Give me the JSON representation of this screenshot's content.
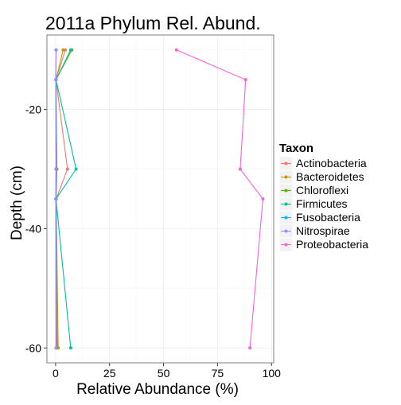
{
  "chart_data": {
    "type": "line",
    "title": "2011a Phylum Rel. Abund.",
    "xlabel": "Relative Abundance (%)",
    "ylabel": "Depth (cm)",
    "xlim": [
      -4,
      101
    ],
    "ylim": [
      -62.5,
      -7.5
    ],
    "x_ticks": [
      0,
      25,
      50,
      75,
      100
    ],
    "y_ticks": [
      -20,
      -40,
      -60
    ],
    "grid": true,
    "legend_title": "Taxon",
    "legend_position": "right",
    "depths": [
      -10,
      -15,
      -30,
      -35,
      -60
    ],
    "series": [
      {
        "name": "Actinobacteria",
        "color": "#F8766D",
        "values": [
          4.5,
          0.2,
          5.5,
          0.3,
          0.8
        ]
      },
      {
        "name": "Bacteroidetes",
        "color": "#C49A00",
        "values": [
          3.5,
          0.2,
          0.6,
          0.3,
          1.2
        ]
      },
      {
        "name": "Chloroflexi",
        "color": "#53B400",
        "values": [
          7.5,
          0.2,
          0.5,
          0.2,
          0.5
        ]
      },
      {
        "name": "Firmicutes",
        "color": "#00C094",
        "values": [
          7.0,
          0.2,
          9.5,
          0.2,
          7.0
        ]
      },
      {
        "name": "Fusobacteria",
        "color": "#00B6EB",
        "values": [
          0.2,
          0.1,
          0.2,
          0.1,
          0.2
        ]
      },
      {
        "name": "Nitrospirae",
        "color": "#A58AFF",
        "values": [
          0.3,
          0.1,
          0.2,
          0.1,
          0.2
        ]
      },
      {
        "name": "Proteobacteria",
        "color": "#FB61D7",
        "values": [
          56,
          88,
          85.5,
          96,
          90
        ]
      }
    ]
  }
}
